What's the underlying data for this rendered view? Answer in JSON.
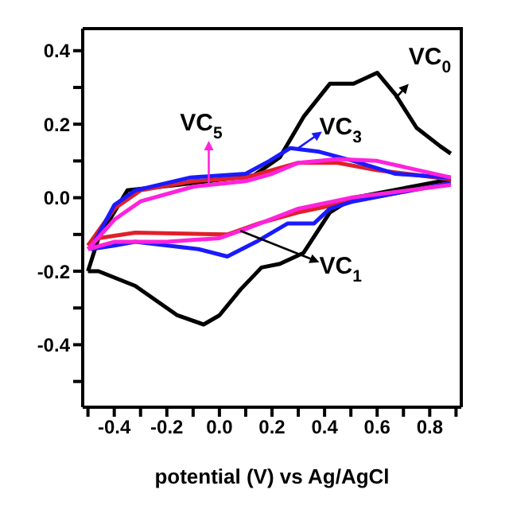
{
  "chart_data": {
    "type": "line",
    "xlabel": "potential (V) vs Ag/AgCl",
    "xlim": [
      -0.52,
      0.92
    ],
    "xticks": [
      {
        "value": -0.5,
        "label": null
      },
      -0.4,
      {
        "value": -0.3,
        "label": null
      },
      -0.2,
      {
        "value": -0.1,
        "label": null
      },
      {
        "value": 0,
        "label": "0.0"
      },
      {
        "value": 0.1,
        "label": null
      },
      0.2,
      {
        "value": 0.3,
        "label": null
      },
      0.4,
      {
        "value": 0.5,
        "label": null
      },
      0.6,
      {
        "value": 0.7,
        "label": null
      },
      0.8,
      {
        "value": 0.9,
        "label": null
      }
    ],
    "ylim": [
      -0.57,
      0.46
    ],
    "yticks": [
      {
        "value": -0.5,
        "label": null
      },
      -0.4,
      {
        "value": -0.3,
        "label": null
      },
      -0.2,
      {
        "value": -0.1,
        "label": null
      },
      {
        "value": 0,
        "label": "0.0"
      },
      {
        "value": 0.1,
        "label": null
      },
      0.2,
      {
        "value": 0.3,
        "label": null
      },
      0.4
    ],
    "series": [
      {
        "color": "#000000",
        "x": [
          -0.5,
          -0.46,
          -0.35,
          -0.16,
          0.13,
          0.23,
          0.32,
          0.42,
          0.51,
          0.6,
          0.67,
          0.75,
          0.84,
          0.88
        ],
        "values": [
          -0.2,
          -0.11,
          0.02,
          0.035,
          0.06,
          0.11,
          0.22,
          0.31,
          0.31,
          0.34,
          0.28,
          0.19,
          0.14,
          0.12
        ]
      },
      {
        "color": "#000000",
        "x": [
          -0.5,
          -0.46,
          -0.32,
          -0.16,
          -0.06,
          0.0,
          0.08,
          0.16,
          0.23,
          0.32,
          0.42,
          0.51,
          0.88
        ],
        "values": [
          -0.2,
          -0.2,
          -0.24,
          -0.32,
          -0.345,
          -0.32,
          -0.25,
          -0.19,
          -0.18,
          -0.15,
          -0.04,
          0.0,
          0.05
        ]
      },
      {
        "color": "#e0202a",
        "x": [
          -0.5,
          -0.4,
          -0.3,
          -0.1,
          0.1,
          0.2,
          0.3,
          0.45,
          0.6,
          0.88
        ],
        "values": [
          -0.13,
          -0.03,
          0.02,
          0.045,
          0.055,
          0.075,
          0.095,
          0.095,
          0.075,
          0.05
        ]
      },
      {
        "color": "#e0202a",
        "x": [
          -0.5,
          -0.46,
          -0.32,
          0.03,
          0.15,
          0.3,
          0.5,
          0.88
        ],
        "values": [
          -0.13,
          -0.11,
          -0.095,
          -0.1,
          -0.07,
          -0.04,
          -0.01,
          0.04
        ]
      },
      {
        "color": "#1a1aff",
        "x": [
          -0.49,
          -0.4,
          -0.32,
          -0.11,
          0.1,
          0.19,
          0.27,
          0.38,
          0.51,
          0.67,
          0.88
        ],
        "values": [
          -0.14,
          -0.02,
          0.02,
          0.055,
          0.065,
          0.1,
          0.135,
          0.125,
          0.1,
          0.065,
          0.055
        ]
      },
      {
        "color": "#1a1aff",
        "x": [
          -0.49,
          -0.4,
          -0.32,
          -0.08,
          0.03,
          0.14,
          0.26,
          0.36,
          0.42,
          0.51,
          0.88
        ],
        "values": [
          -0.14,
          -0.13,
          -0.12,
          -0.14,
          -0.16,
          -0.12,
          -0.07,
          -0.07,
          -0.03,
          -0.01,
          0.04
        ]
      },
      {
        "color": "#ff22dd",
        "x": [
          -0.5,
          -0.4,
          -0.3,
          -0.1,
          0.1,
          0.2,
          0.3,
          0.45,
          0.6,
          0.88
        ],
        "values": [
          -0.14,
          -0.06,
          -0.01,
          0.03,
          0.045,
          0.065,
          0.095,
          0.105,
          0.1,
          0.055
        ]
      },
      {
        "color": "#ff22dd",
        "x": [
          -0.5,
          -0.4,
          -0.2,
          0.0,
          0.1,
          0.3,
          0.5,
          0.88
        ],
        "values": [
          -0.14,
          -0.12,
          -0.12,
          -0.11,
          -0.085,
          -0.03,
          0.0,
          0.035
        ]
      }
    ],
    "annotations": [
      "VC$_{0}$",
      "VC$_{3}$",
      "VC$_{5}$",
      {
        "text": "VC$_{1}$",
        "x": 0.08,
        "y": -0.09
      }
    ]
  }
}
